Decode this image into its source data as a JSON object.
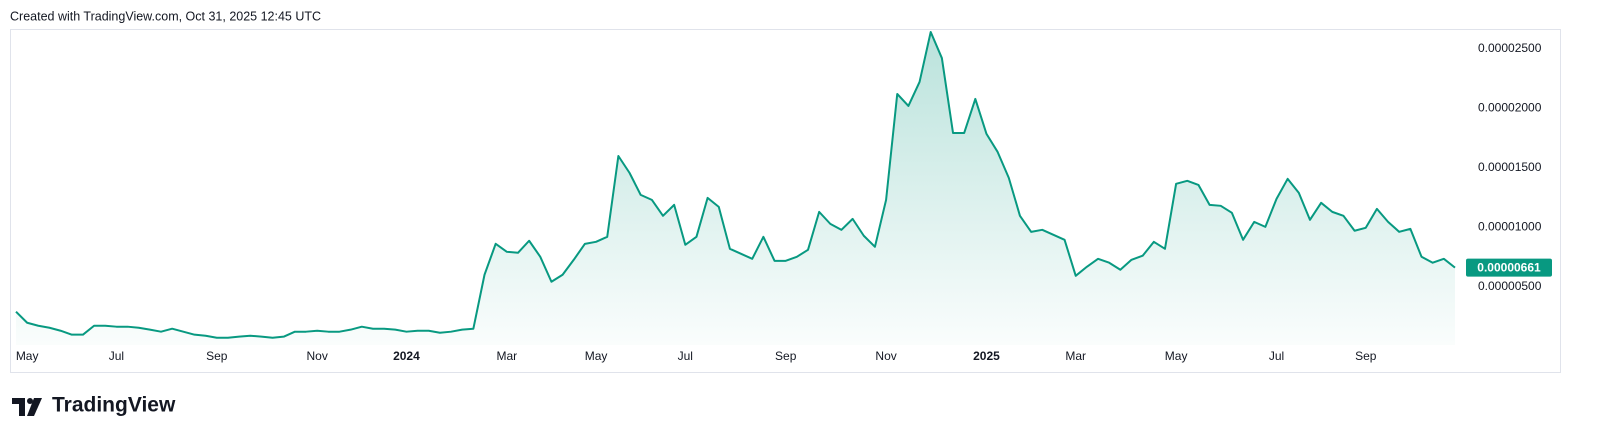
{
  "header": {
    "text": "Created with TradingView.com, Oct 31, 2025 12:45 UTC"
  },
  "footer": {
    "brand": "TradingView"
  },
  "chart_data": {
    "type": "area",
    "color": "#089981",
    "grid": false,
    "ylim": [
      1e-07,
      2.66e-05
    ],
    "yticks": [
      {
        "value": 5e-06,
        "label": "0.00000500"
      },
      {
        "value": 1e-05,
        "label": "0.00001000"
      },
      {
        "value": 1.5e-05,
        "label": "0.00001500"
      },
      {
        "value": 2e-05,
        "label": "0.00002000"
      },
      {
        "value": 2.5e-05,
        "label": "0.00002500"
      }
    ],
    "last_price": {
      "value": 6.61e-06,
      "label": "0.00000661"
    },
    "categories": [
      null,
      "May",
      null,
      null,
      null,
      null,
      null,
      null,
      null,
      "Jul",
      null,
      null,
      null,
      null,
      null,
      null,
      null,
      null,
      "Sep",
      null,
      null,
      null,
      null,
      null,
      null,
      null,
      null,
      "Nov",
      null,
      null,
      null,
      null,
      null,
      null,
      null,
      "2024",
      null,
      null,
      null,
      null,
      null,
      null,
      null,
      null,
      "Mar",
      null,
      null,
      null,
      null,
      null,
      null,
      null,
      "May",
      null,
      null,
      null,
      null,
      null,
      null,
      null,
      "Jul",
      null,
      null,
      null,
      null,
      null,
      null,
      null,
      null,
      "Sep",
      null,
      null,
      null,
      null,
      null,
      null,
      null,
      null,
      "Nov",
      null,
      null,
      null,
      null,
      null,
      null,
      null,
      null,
      "2025",
      null,
      null,
      null,
      null,
      null,
      null,
      null,
      "Mar",
      null,
      null,
      null,
      null,
      null,
      null,
      null,
      null,
      "May",
      null,
      null,
      null,
      null,
      null,
      null,
      null,
      null,
      "Jul",
      null,
      null,
      null,
      null,
      null,
      null,
      null,
      "Sep",
      null,
      null,
      null,
      null,
      null,
      null,
      null,
      null
    ],
    "values": [
      2.9e-06,
      1.97e-06,
      1.72e-06,
      1.55e-06,
      1.3e-06,
      9.7e-07,
      9.7e-07,
      1.72e-06,
      1.72e-06,
      1.64e-06,
      1.64e-06,
      1.55e-06,
      1.39e-06,
      1.22e-06,
      1.47e-06,
      1.22e-06,
      9.7e-07,
      8.8e-07,
      7.1e-07,
      7.1e-07,
      8e-07,
      8.8e-07,
      8e-07,
      7.1e-07,
      8e-07,
      1.22e-06,
      1.22e-06,
      1.3e-06,
      1.22e-06,
      1.22e-06,
      1.39e-06,
      1.64e-06,
      1.47e-06,
      1.47e-06,
      1.39e-06,
      1.22e-06,
      1.3e-06,
      1.3e-06,
      1.13e-06,
      1.22e-06,
      1.39e-06,
      1.47e-06,
      6.01e-06,
      8.61e-06,
      7.94e-06,
      7.86e-06,
      8.87e-06,
      7.52e-06,
      5.42e-06,
      6.01e-06,
      7.27e-06,
      8.61e-06,
      8.78e-06,
      9.2e-06,
      1.6e-05,
      1.458e-05,
      1.273e-05,
      1.231e-05,
      1.097e-05,
      1.189e-05,
      8.53e-06,
      9.2e-06,
      1.248e-05,
      1.172e-05,
      8.19e-06,
      7.77e-06,
      7.35e-06,
      9.2e-06,
      7.18e-06,
      7.18e-06,
      7.52e-06,
      8.11e-06,
      1.13e-05,
      1.029e-05,
      9.79e-06,
      1.071e-05,
      9.29e-06,
      8.36e-06,
      1.231e-05,
      2.122e-05,
      2.021e-05,
      2.223e-05,
      2.643e-05,
      2.424e-05,
      1.794e-05,
      1.794e-05,
      2.08e-05,
      1.786e-05,
      1.634e-05,
      1.416e-05,
      1.097e-05,
      9.62e-06,
      9.79e-06,
      9.37e-06,
      8.95e-06,
      5.92e-06,
      6.68e-06,
      7.35e-06,
      7.02e-06,
      6.43e-06,
      7.27e-06,
      7.61e-06,
      8.78e-06,
      8.19e-06,
      1.366e-05,
      1.391e-05,
      1.357e-05,
      1.189e-05,
      1.181e-05,
      1.122e-05,
      8.95e-06,
      1.046e-05,
      1.004e-05,
      1.239e-05,
      1.408e-05,
      1.29e-05,
      1.063e-05,
      1.206e-05,
      1.13e-05,
      1.097e-05,
      9.71e-06,
      9.96e-06,
      1.155e-05,
      1.046e-05,
      9.62e-06,
      9.87e-06,
      7.52e-06,
      7.02e-06,
      7.35e-06,
      6.61e-06
    ]
  }
}
